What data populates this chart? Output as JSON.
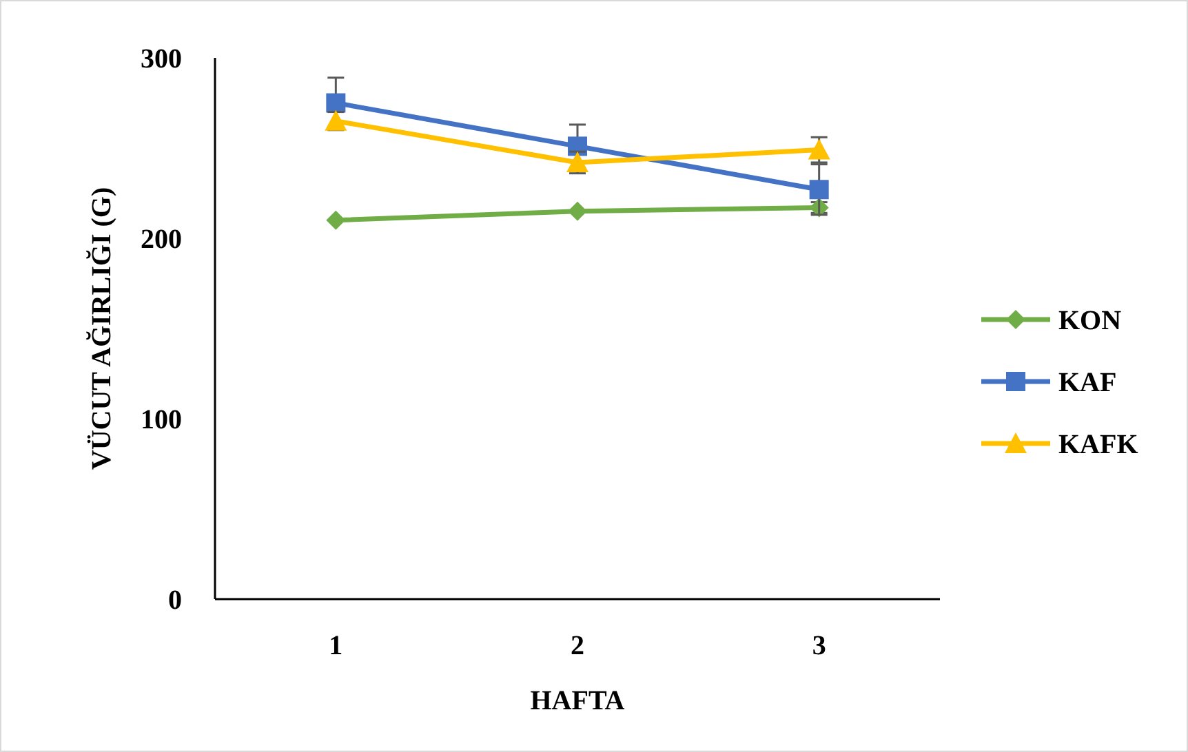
{
  "chart_data": {
    "type": "line",
    "xlabel": "HAFTA",
    "ylabel": "VÜCUT AĞIRLIĞI (G)",
    "categories": [
      "1",
      "2",
      "3"
    ],
    "ylim": [
      0,
      300
    ],
    "yticks": [
      0,
      100,
      200,
      300
    ],
    "grid": false,
    "legend": "right",
    "line_style": "solid",
    "series": [
      {
        "name": "KON",
        "color": "#70ad47",
        "marker": "diamond",
        "values": [
          210,
          215,
          217
        ],
        "errors": [
          null,
          null,
          3
        ]
      },
      {
        "name": "KAF",
        "color": "#4472c4",
        "marker": "square",
        "values": [
          275,
          251,
          227
        ],
        "errors": [
          14,
          12,
          14
        ]
      },
      {
        "name": "KAFK",
        "color": "#ffc000",
        "marker": "triangle",
        "values": [
          265,
          242,
          249
        ],
        "errors": [
          5,
          6,
          7
        ]
      }
    ]
  }
}
